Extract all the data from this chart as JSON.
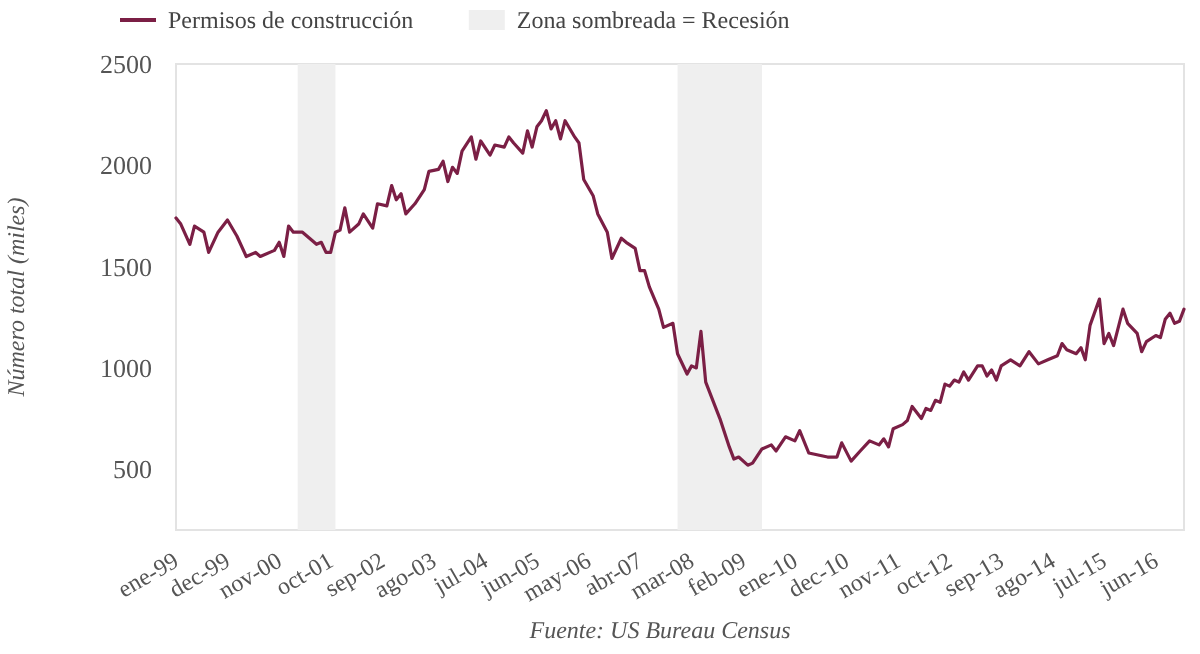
{
  "chart_data": {
    "type": "line",
    "ylabel": "Número total (miles)",
    "annotations": [
      "Fuente: US Bureau Census"
    ],
    "legend": "top left",
    "grid": false,
    "marker": "none",
    "line_style": "solid",
    "xlim": [
      "1999-01",
      "2016-12"
    ],
    "ylim": [
      200,
      2500
    ],
    "yticks": [
      500,
      1000,
      1500,
      2000,
      2500
    ],
    "xticks": [
      {
        "value": "1999-01",
        "label": "ene-99"
      },
      {
        "value": "1999-12",
        "label": "dec-99"
      },
      {
        "value": "2000-11",
        "label": "nov-00"
      },
      {
        "value": "2001-10",
        "label": "oct-01"
      },
      {
        "value": "2002-09",
        "label": "sep-02"
      },
      {
        "value": "2003-08",
        "label": "ago-03"
      },
      {
        "value": "2004-07",
        "label": "jul-04"
      },
      {
        "value": "2005-06",
        "label": "jun-05"
      },
      {
        "value": "2006-05",
        "label": "may-06"
      },
      {
        "value": "2007-04",
        "label": "abr-07"
      },
      {
        "value": "2008-03",
        "label": "mar-08"
      },
      {
        "value": "2009-02",
        "label": "feb-09"
      },
      {
        "value": "2010-01",
        "label": "ene-10"
      },
      {
        "value": "2010-12",
        "label": "dec-10"
      },
      {
        "value": "2011-11",
        "label": "nov-11"
      },
      {
        "value": "2012-10",
        "label": "oct-12"
      },
      {
        "value": "2013-09",
        "label": "sep-13"
      },
      {
        "value": "2014-08",
        "label": "ago-14"
      },
      {
        "value": "2015-07",
        "label": "jul-15"
      },
      {
        "value": "2016-06",
        "label": "jun-16"
      }
    ],
    "bands": [
      {
        "axis": "x",
        "from": "2001-03",
        "to": "2001-11",
        "label": "Zona sombreada = Recesión",
        "color": "#efefef"
      },
      {
        "axis": "x",
        "from": "2007-12",
        "to": "2009-06",
        "color": "#efefef"
      }
    ],
    "x": [
      "1999-01",
      "1999-02",
      "1999-04",
      "1999-05",
      "1999-07",
      "1999-08",
      "1999-10",
      "1999-12",
      "2000-02",
      "2000-04",
      "2000-06",
      "2000-07",
      "2000-10",
      "2000-11",
      "2000-12",
      "2001-01",
      "2001-02",
      "2001-04",
      "2001-06",
      "2001-07",
      "2001-08",
      "2001-09",
      "2001-10",
      "2001-11",
      "2001-12",
      "2002-01",
      "2002-02",
      "2002-04",
      "2002-05",
      "2002-07",
      "2002-08",
      "2002-10",
      "2002-11",
      "2002-12",
      "2003-01",
      "2003-02",
      "2003-04",
      "2003-06",
      "2003-07",
      "2003-09",
      "2003-10",
      "2003-11",
      "2003-12",
      "2004-01",
      "2004-02",
      "2004-04",
      "2004-05",
      "2004-06",
      "2004-08",
      "2004-09",
      "2004-11",
      "2004-12",
      "2005-01",
      "2005-03",
      "2005-04",
      "2005-05",
      "2005-06",
      "2005-07",
      "2005-08",
      "2005-09",
      "2005-10",
      "2005-11",
      "2005-12",
      "2006-02",
      "2006-03",
      "2006-04",
      "2006-06",
      "2006-07",
      "2006-09",
      "2006-10",
      "2006-12",
      "2007-01",
      "2007-03",
      "2007-04",
      "2007-05",
      "2007-06",
      "2007-08",
      "2007-09",
      "2007-11",
      "2007-12",
      "2008-02",
      "2008-03",
      "2008-04",
      "2008-05",
      "2008-06",
      "2008-09",
      "2008-11",
      "2008-12",
      "2009-01",
      "2009-03",
      "2009-04",
      "2009-06",
      "2009-08",
      "2009-09",
      "2009-11",
      "2010-01",
      "2010-02",
      "2010-04",
      "2010-08",
      "2010-10",
      "2010-11",
      "2011-01",
      "2011-03",
      "2011-05",
      "2011-07",
      "2011-08",
      "2011-09",
      "2011-10",
      "2011-12",
      "2012-01",
      "2012-02",
      "2012-04",
      "2012-05",
      "2012-06",
      "2012-07",
      "2012-08",
      "2012-09",
      "2012-10",
      "2012-11",
      "2012-12",
      "2013-01",
      "2013-02",
      "2013-04",
      "2013-05",
      "2013-06",
      "2013-07",
      "2013-08",
      "2013-09",
      "2013-11",
      "2014-01",
      "2014-03",
      "2014-05",
      "2014-07",
      "2014-09",
      "2014-10",
      "2014-11",
      "2015-01",
      "2015-02",
      "2015-03",
      "2015-04",
      "2015-06",
      "2015-07",
      "2015-08",
      "2015-09",
      "2015-11",
      "2015-12",
      "2016-02",
      "2016-03",
      "2016-04",
      "2016-06",
      "2016-07",
      "2016-08",
      "2016-09",
      "2016-10",
      "2016-11",
      "2016-12"
    ],
    "series": [
      {
        "name": "Permisos de construcción",
        "color": "#7b1f45",
        "values": [
          1740,
          1710,
          1610,
          1700,
          1670,
          1570,
          1670,
          1730,
          1650,
          1550,
          1570,
          1550,
          1580,
          1620,
          1550,
          1700,
          1670,
          1670,
          1630,
          1610,
          1620,
          1570,
          1570,
          1670,
          1680,
          1790,
          1670,
          1710,
          1760,
          1690,
          1810,
          1800,
          1900,
          1830,
          1860,
          1760,
          1810,
          1880,
          1970,
          1980,
          2020,
          1920,
          1990,
          1960,
          2070,
          2140,
          2030,
          2120,
          2050,
          2100,
          2090,
          2140,
          2110,
          2060,
          2170,
          2090,
          2190,
          2220,
          2270,
          2180,
          2220,
          2130,
          2220,
          2140,
          2110,
          1930,
          1850,
          1760,
          1670,
          1540,
          1640,
          1620,
          1590,
          1480,
          1480,
          1400,
          1290,
          1200,
          1220,
          1070,
          970,
          1010,
          1000,
          1180,
          930,
          750,
          610,
          550,
          560,
          520,
          530,
          600,
          620,
          590,
          660,
          640,
          690,
          580,
          560,
          560,
          630,
          540,
          590,
          640,
          620,
          650,
          610,
          700,
          720,
          740,
          810,
          750,
          800,
          790,
          840,
          830,
          920,
          910,
          940,
          930,
          980,
          940,
          1010,
          1010,
          960,
          990,
          940,
          1010,
          1040,
          1010,
          1080,
          1020,
          1040,
          1060,
          1120,
          1090,
          1070,
          1100,
          1040,
          1210,
          1340,
          1120,
          1170,
          1110,
          1290,
          1220,
          1170,
          1080,
          1130,
          1160,
          1150,
          1240,
          1270,
          1220,
          1230,
          1290
        ]
      }
    ]
  }
}
